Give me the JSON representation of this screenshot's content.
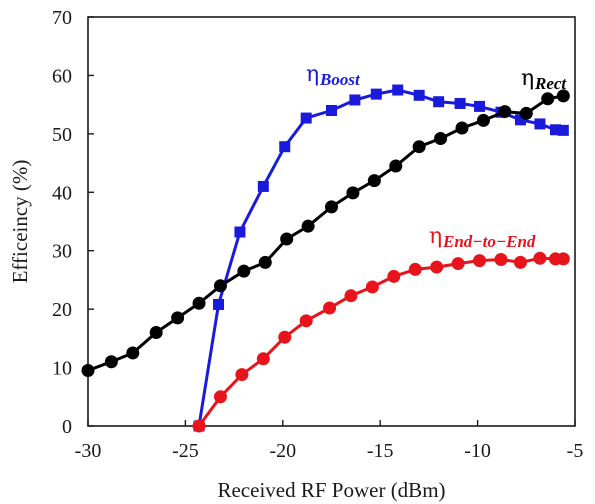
{
  "chart_data": {
    "type": "line",
    "xlabel": "Received RF Power (dBm)",
    "ylabel": "Efficeincy (%)",
    "xlim": [
      -30,
      -5
    ],
    "ylim": [
      0,
      70
    ],
    "x_ticks": [
      "-30",
      "-25",
      "-20",
      "-15",
      "-10",
      "-5"
    ],
    "y_ticks": [
      "0",
      "10",
      "20",
      "30",
      "40",
      "50",
      "60",
      "70"
    ],
    "grid": false,
    "legend": "inline labels",
    "series": [
      {
        "key": "boost",
        "eta": "η",
        "subscript": "Boost",
        "color": "#1a1adb",
        "marker": "square",
        "x": [
          -24.3,
          -23.3,
          -22.2,
          -21.0,
          -19.9,
          -18.8,
          -17.5,
          -16.3,
          -15.2,
          -14.1,
          -13.0,
          -12.0,
          -10.9,
          -9.9,
          -8.8,
          -7.8,
          -6.8,
          -6.0,
          -5.6
        ],
        "y": [
          0,
          20.8,
          33.2,
          41.0,
          47.8,
          52.7,
          54.0,
          55.8,
          56.8,
          57.5,
          56.6,
          55.5,
          55.2,
          54.7,
          53.7,
          52.4,
          51.7,
          50.7,
          50.6
        ]
      },
      {
        "key": "rect",
        "eta": "η",
        "subscript": "Rect",
        "color": "#000000",
        "marker": "circle",
        "x": [
          -30.0,
          -28.8,
          -27.7,
          -26.5,
          -25.4,
          -24.3,
          -23.2,
          -22.0,
          -20.9,
          -19.8,
          -18.7,
          -17.5,
          -16.4,
          -15.3,
          -14.2,
          -13.0,
          -11.9,
          -10.8,
          -9.7,
          -8.6,
          -7.5,
          -6.4,
          -5.6
        ],
        "y": [
          9.5,
          11.0,
          12.5,
          16.0,
          18.5,
          21.0,
          24.0,
          26.5,
          28.0,
          32.0,
          34.2,
          37.5,
          39.9,
          42.0,
          44.5,
          47.8,
          49.2,
          51.0,
          52.3,
          53.8,
          53.5,
          56.0,
          56.5
        ]
      },
      {
        "key": "end_to_end",
        "eta": "η",
        "subscript": "End−to−End",
        "color": "#e8141b",
        "marker": "circle",
        "x": [
          -24.3,
          -23.2,
          -22.1,
          -21.0,
          -19.9,
          -18.8,
          -17.6,
          -16.5,
          -15.4,
          -14.3,
          -13.2,
          -12.1,
          -11.0,
          -9.9,
          -8.8,
          -7.8,
          -6.8,
          -6.0,
          -5.6
        ],
        "y": [
          0,
          5.0,
          8.8,
          11.5,
          15.2,
          18.0,
          20.2,
          22.3,
          23.8,
          25.6,
          26.8,
          27.2,
          27.8,
          28.3,
          28.5,
          28.0,
          28.7,
          28.6,
          28.6
        ]
      }
    ]
  }
}
